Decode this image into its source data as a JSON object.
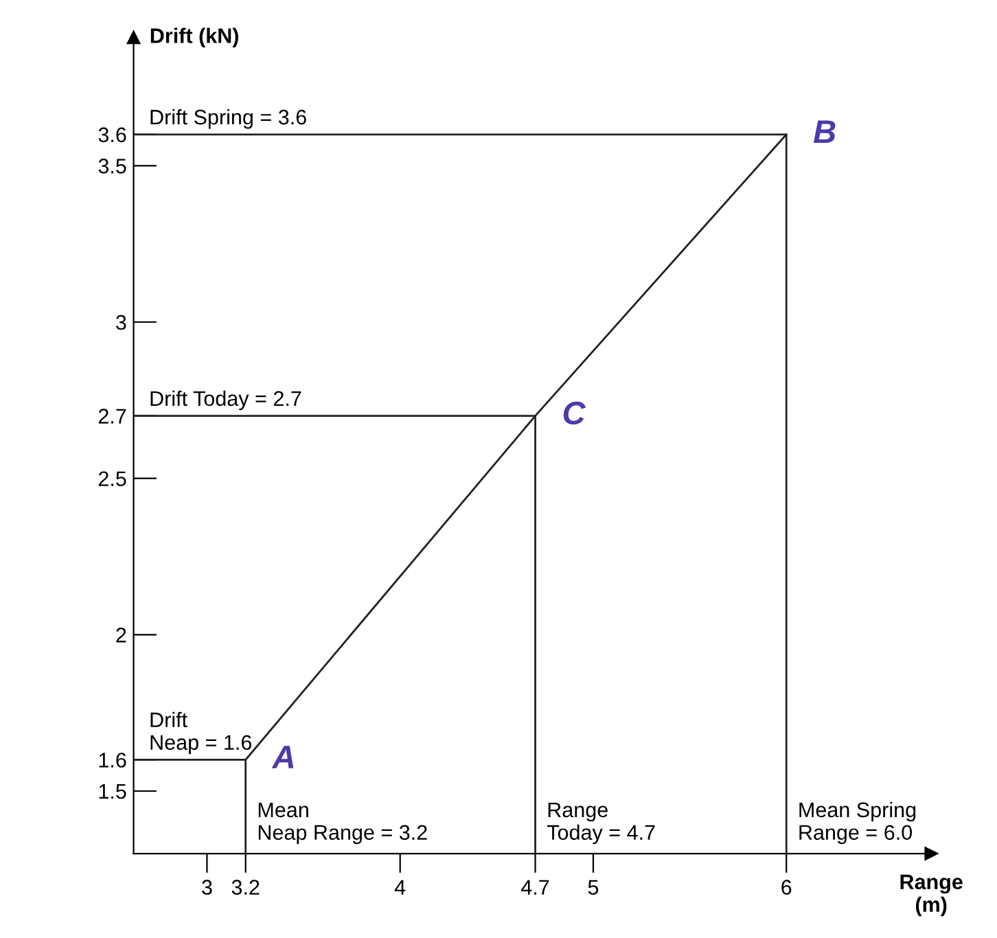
{
  "chart_data": {
    "type": "line",
    "xlabel": "Range\n(m)",
    "ylabel": "Drift (kN)",
    "xlim": [
      2.62,
      6.75
    ],
    "ylim": [
      1.3,
      3.91
    ],
    "xticks": [
      3,
      3.2,
      4,
      4.7,
      5,
      6
    ],
    "yticks": [
      1.5,
      1.6,
      2,
      2.5,
      2.7,
      3,
      3.5,
      3.6
    ],
    "series": [
      {
        "color": "#222222",
        "x": [
          3.2,
          4.7,
          6
        ],
        "values": [
          1.6,
          2.7,
          3.6
        ]
      },
      {
        "color": "#222222",
        "x": [
          2.62,
          3.2,
          3.2
        ],
        "values": [
          1.6,
          1.6,
          1.3
        ]
      },
      {
        "color": "#222222",
        "x": [
          2.62,
          4.7,
          4.7
        ],
        "values": [
          2.7,
          2.7,
          1.3
        ]
      },
      {
        "color": "#222222",
        "x": [
          2.62,
          6,
          6
        ],
        "values": [
          3.6,
          3.6,
          1.3
        ]
      }
    ],
    "annotations": [
      {
        "text": "Drift Spring = 3.6",
        "x": 2.7,
        "y": 3.6
      },
      {
        "text": "Drift Today = 2.7",
        "x": 2.7,
        "y": 2.7
      },
      {
        "text": "Drift\nNeap = 1.6",
        "x": 2.7,
        "y": 1.6
      },
      {
        "text": "Mean\nNeap Range = 3.2",
        "x": 3.2,
        "y": 1.3
      },
      {
        "text": "Range\nToday = 4.7",
        "x": 4.7,
        "y": 1.3
      },
      {
        "text": "Mean Spring\nRange = 6.0",
        "x": 6,
        "y": 1.3
      },
      {
        "text": "A",
        "x": 3.2,
        "y": 1.6
      },
      {
        "text": "C",
        "x": 4.7,
        "y": 2.7
      },
      {
        "text": "B",
        "x": 6,
        "y": 3.6
      }
    ]
  }
}
